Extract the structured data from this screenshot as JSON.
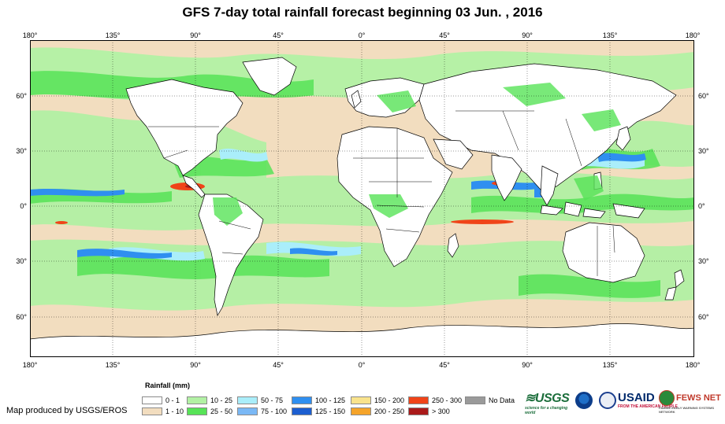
{
  "title": "GFS 7-day total rainfall forecast beginning 03 Jun. , 2016",
  "longitude_labels": [
    "180°",
    "135°",
    "90°",
    "45°",
    "0°",
    "45°",
    "90°",
    "135°",
    "180°"
  ],
  "latitude_labels": [
    "60°",
    "30°",
    "0°",
    "30°",
    "60°"
  ],
  "legend": {
    "title": "Rainfall (mm)",
    "items": [
      {
        "label": "0 - 1",
        "color": "#ffffff"
      },
      {
        "label": "1 - 10",
        "color": "#f2ddbf"
      },
      {
        "label": "10 - 25",
        "color": "#b2f1a4"
      },
      {
        "label": "25 - 50",
        "color": "#57e357"
      },
      {
        "label": "50 - 75",
        "color": "#aaeefa"
      },
      {
        "label": "75 - 100",
        "color": "#7ab8f5"
      },
      {
        "label": "100 - 125",
        "color": "#2f8ff0"
      },
      {
        "label": "125 - 150",
        "color": "#1c5ed0"
      },
      {
        "label": "150 - 200",
        "color": "#f9e38c"
      },
      {
        "label": "200 - 250",
        "color": "#f5a42a"
      },
      {
        "label": "250 - 300",
        "color": "#f04419"
      },
      {
        "label": "> 300",
        "color": "#aa1a1a"
      },
      {
        "label": "No Data",
        "color": "#9a9a9a"
      }
    ]
  },
  "credit": "Map produced by USGS/EROS",
  "logos": {
    "usgs": {
      "name": "USGS",
      "tagline": "science for a changing world"
    },
    "usaid": {
      "name": "USAID",
      "tagline": "FROM THE AMERICAN PEOPLE"
    },
    "fewsnet": {
      "name": "FEWS NET",
      "tagline": "FAMINE EARLY WARNING SYSTEMS NETWORK"
    }
  },
  "colors": {
    "ocean_base": "#f2ddbf",
    "land": "#ffffff",
    "outline": "#000000"
  }
}
